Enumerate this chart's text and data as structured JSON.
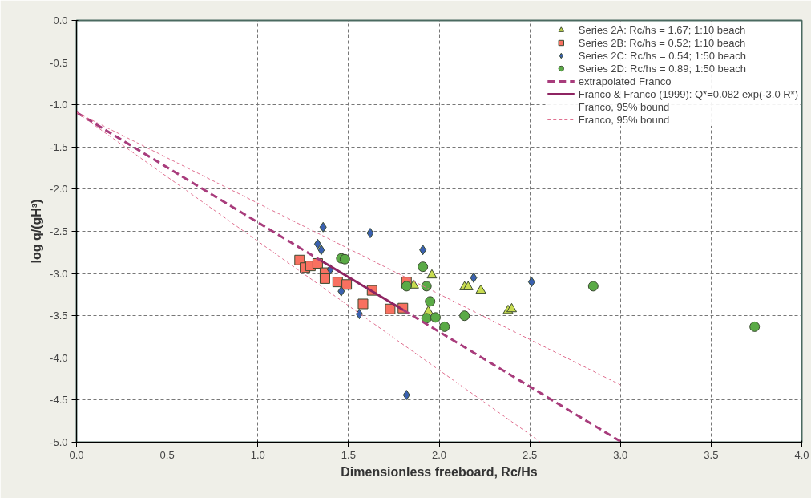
{
  "chart_data": {
    "type": "scatter",
    "xlabel": "Dimensionless freeboard, Rc/Hs",
    "ylabel": "log q/(gH³)",
    "xlim": [
      0,
      4
    ],
    "ylim": [
      -5,
      0
    ],
    "xticks": [
      {
        "value": 0,
        "label": "0.0"
      },
      {
        "value": 0.5,
        "label": "0.5"
      },
      {
        "value": 1,
        "label": "1.0"
      },
      {
        "value": 1.5,
        "label": "1.5"
      },
      {
        "value": 2,
        "label": "2.0"
      },
      {
        "value": 2.5,
        "label": "2.5"
      },
      {
        "value": 3,
        "label": "3.0"
      },
      {
        "value": 3.5,
        "label": "3.5"
      },
      {
        "value": 4,
        "label": "4.0"
      }
    ],
    "yticks": [
      {
        "value": 0,
        "label": "0.0"
      },
      -0.5,
      {
        "value": -1,
        "label": "-1.0"
      },
      -1.5,
      {
        "value": -2,
        "label": "-2.0"
      },
      -2.5,
      {
        "value": -3,
        "label": "-3.0"
      },
      -3.5,
      {
        "value": -4,
        "label": "-4.0"
      },
      -4.5,
      {
        "value": -5,
        "label": "-5.0"
      }
    ],
    "grid": true,
    "legend": "top right",
    "series": [
      {
        "name": "Series 2A: Rc/hs = 1.67; 1:10 beach",
        "marker": "triangle",
        "color": "#c8dc50",
        "x": [
          1.86,
          1.94,
          1.96,
          2.14,
          2.16,
          2.23,
          2.38,
          2.4
        ],
        "values": [
          -3.14,
          -3.45,
          -3.02,
          -3.16,
          -3.16,
          -3.2,
          -3.44,
          -3.42
        ]
      },
      {
        "name": "Series 2B: Rc/hs = 0.52; 1:10 beach",
        "marker": "square",
        "color": "#f87060",
        "x": [
          1.23,
          1.26,
          1.29,
          1.33,
          1.37,
          1.37,
          1.44,
          1.49,
          1.63,
          1.58,
          1.73,
          1.8,
          1.82
        ],
        "values": [
          -2.84,
          -2.93,
          -2.91,
          -2.88,
          -2.99,
          -3.06,
          -3.1,
          -3.13,
          -3.2,
          -3.36,
          -3.42,
          -3.41,
          -3.1
        ]
      },
      {
        "name": "Series 2C: Rc/hs = 0.54; 1:50 beach",
        "marker": "diamond",
        "color": "#3a60b0",
        "x": [
          1.36,
          1.62,
          1.33,
          1.35,
          1.91,
          1.4,
          1.46,
          1.56,
          1.82,
          2.19,
          2.51
        ],
        "values": [
          -2.45,
          -2.52,
          -2.65,
          -2.72,
          -2.72,
          -2.95,
          -3.21,
          -3.48,
          -4.44,
          -3.05,
          -3.1
        ]
      },
      {
        "name": "Series 2D: Rc/hs = 0.89; 1:50 beach",
        "marker": "circle",
        "color": "#5aaa46",
        "x": [
          1.46,
          1.48,
          1.82,
          1.91,
          1.93,
          1.95,
          1.93,
          1.98,
          2.03,
          2.14,
          2.85,
          3.74
        ],
        "values": [
          -2.82,
          -2.83,
          -3.15,
          -2.92,
          -3.15,
          -3.33,
          -3.53,
          -3.52,
          -3.63,
          -3.5,
          -3.15,
          -3.63
        ]
      },
      {
        "name": "extrapolated Franco",
        "type": "line",
        "line_style": "dashed",
        "color": "#a83c7c",
        "x": [
          0,
          1.35,
          1.6,
          1.8,
          3.0
        ],
        "values": [
          -1.09,
          -2.85,
          null,
          -3.43,
          -4.99
        ]
      },
      {
        "name": "Franco & Franco (1999): Q*=0.082 exp(-3.0 R*)",
        "type": "line",
        "line_style": "solid",
        "color": "#8e2462",
        "x": [
          1.35,
          1.8
        ],
        "values": [
          -2.85,
          -3.43
        ]
      },
      {
        "name": "Franco, 95% bound",
        "type": "line",
        "line_style": "dashed",
        "color": "#e07090",
        "x": [
          0,
          3.0
        ],
        "values": [
          -1.09,
          -4.32
        ]
      },
      {
        "name": "Franco, 95% bound",
        "type": "line",
        "line_style": "dashed",
        "color": "#e07090",
        "x": [
          0,
          2.56
        ],
        "values": [
          -1.09,
          -5.0
        ]
      }
    ]
  }
}
